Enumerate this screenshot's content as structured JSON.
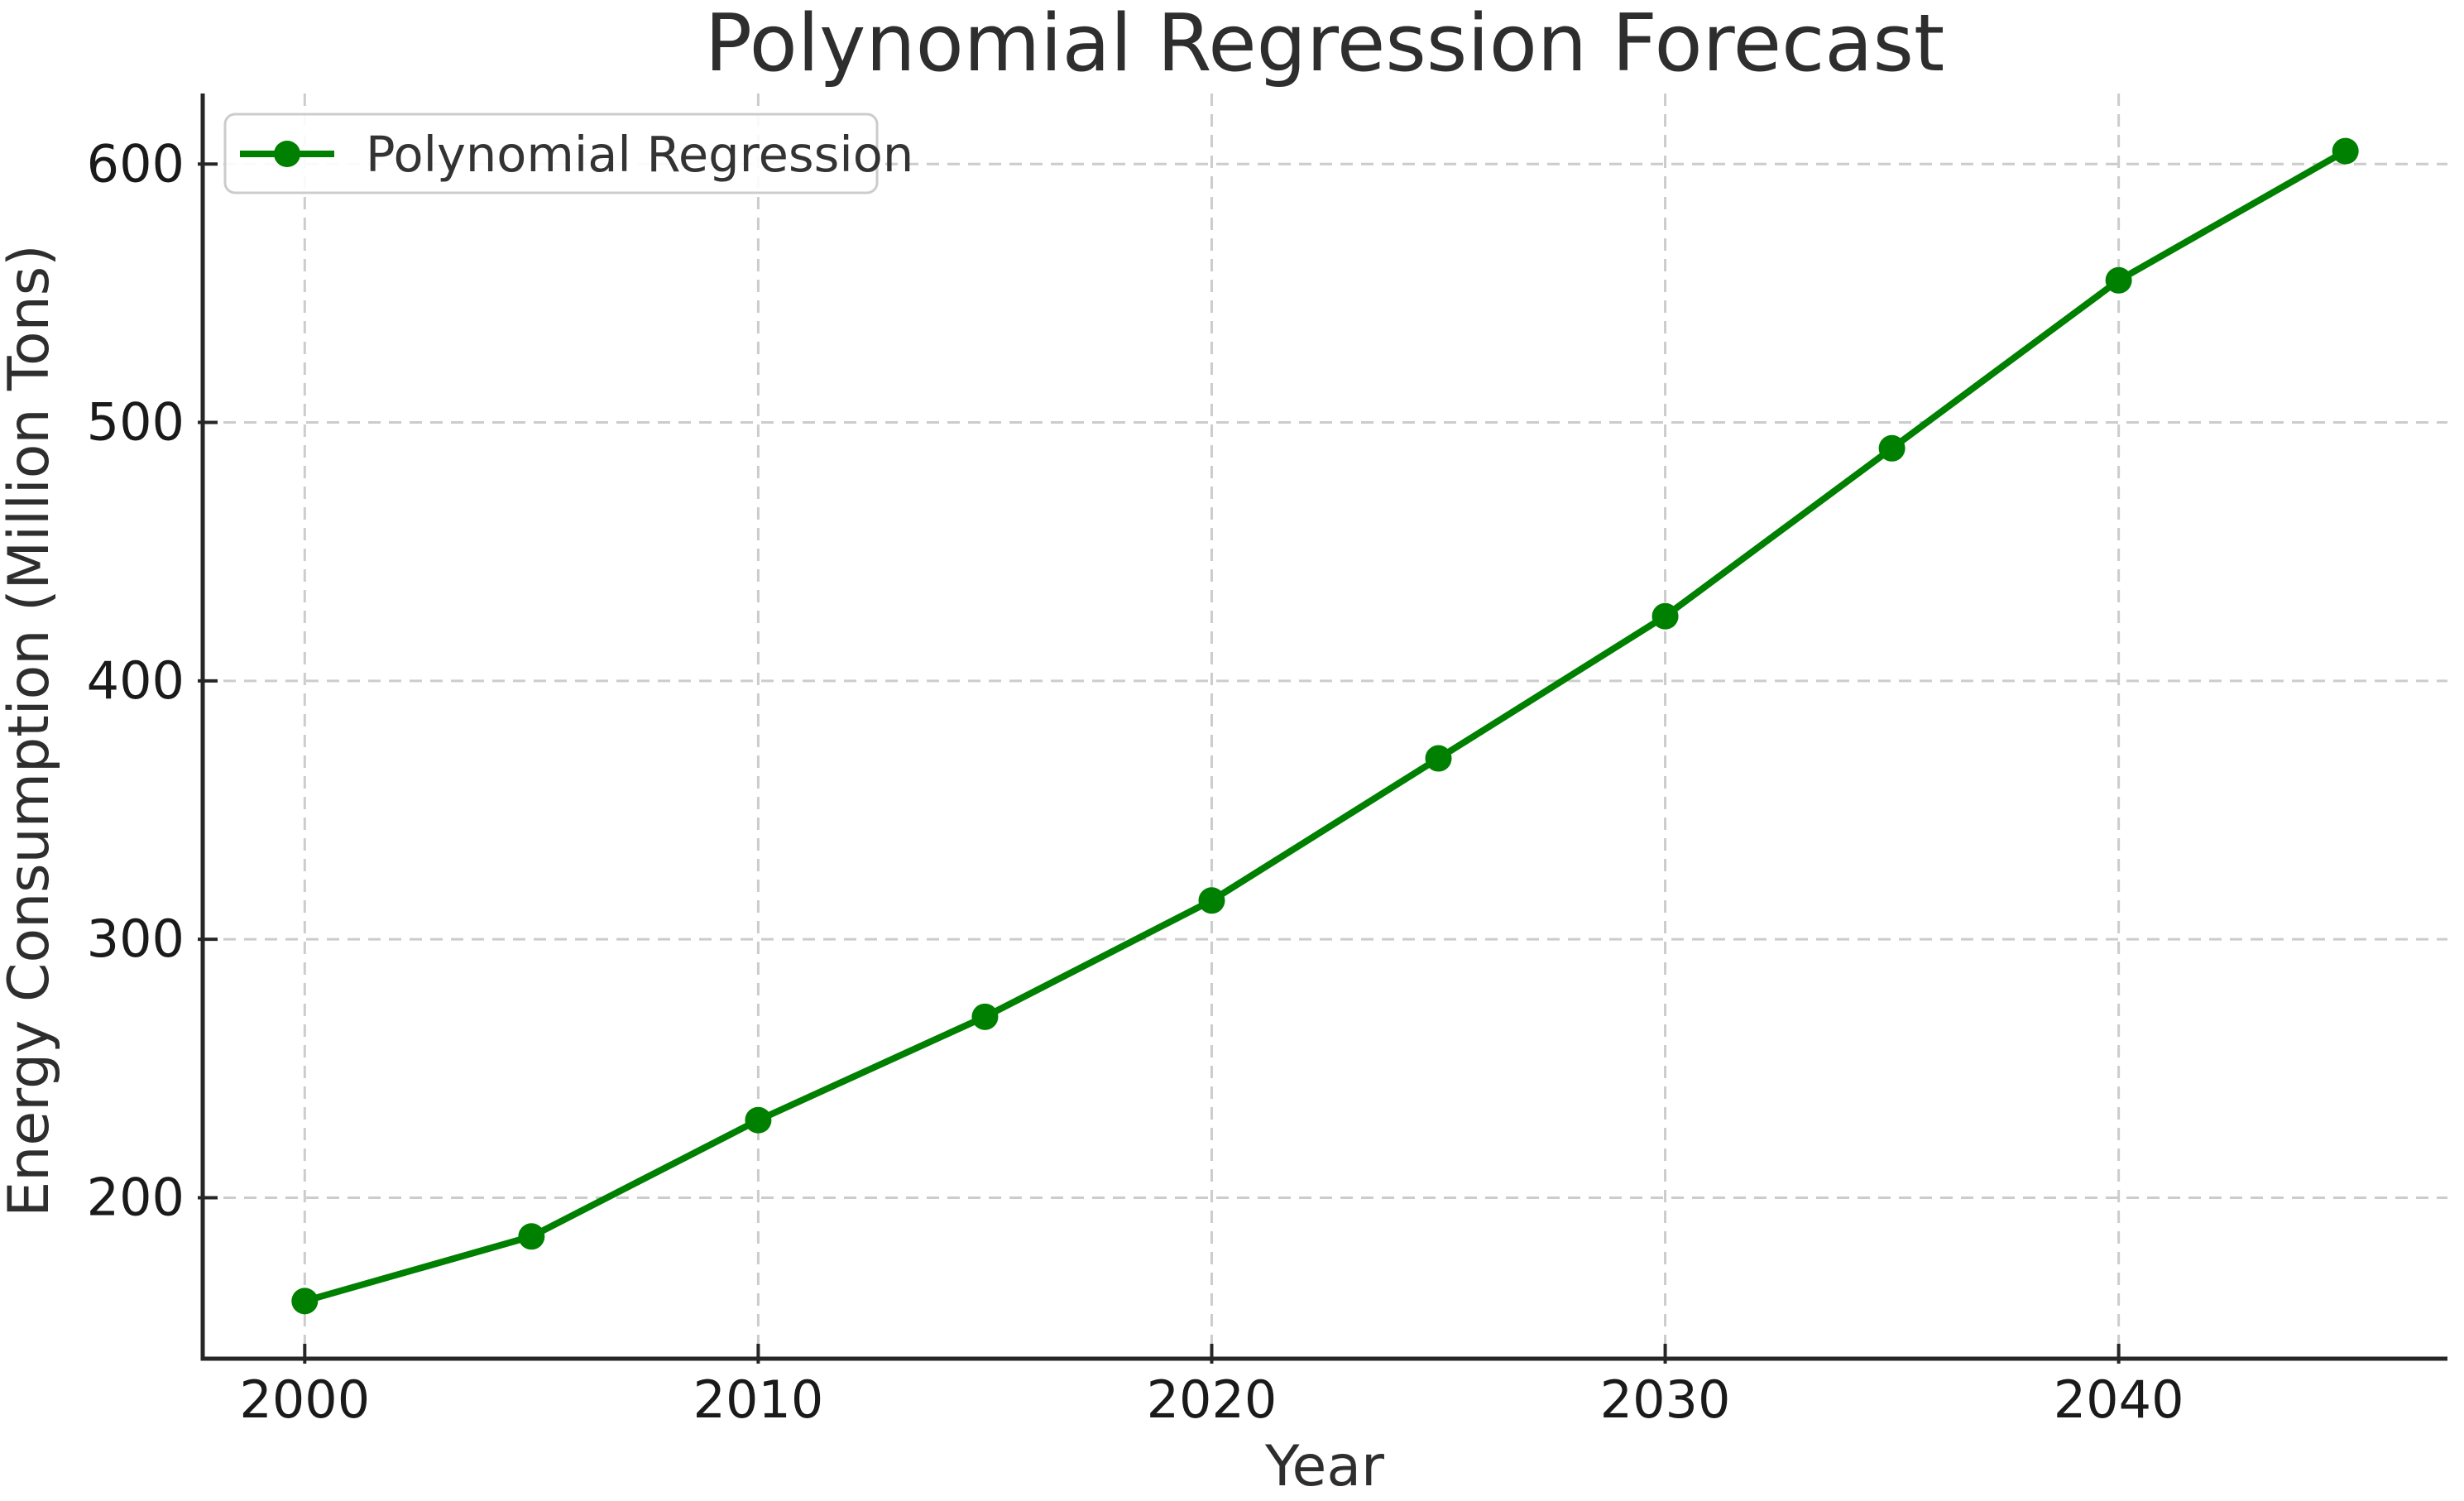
{
  "chart_data": {
    "type": "line",
    "title": "Polynomial Regression Forecast",
    "xlabel": "Year",
    "ylabel": "Energy Consumption (Million Tons)",
    "series": [
      {
        "name": "Polynomial Regression",
        "x": [
          2000,
          2005,
          2010,
          2015,
          2020,
          2025,
          2030,
          2035,
          2040,
          2045
        ],
        "values": [
          160,
          185,
          230,
          270,
          315,
          370,
          425,
          490,
          555,
          605
        ],
        "color": "#008000",
        "marker": "circle",
        "line_style": "solid"
      }
    ],
    "x_ticks": [
      2000,
      2010,
      2020,
      2030,
      2040
    ],
    "y_ticks": [
      200,
      300,
      400,
      500,
      600
    ],
    "xlim": [
      1997.75,
      2047.25
    ],
    "ylim": [
      137.7,
      627.3
    ],
    "grid": true,
    "grid_style": "dashed",
    "legend": {
      "position": "upper left",
      "labels": [
        "Polynomial Regression"
      ]
    },
    "colors": {
      "grid": "#cccccc",
      "spine": "#262626",
      "tick": "#262626",
      "tick_label": "#1a1a1a",
      "title": "#2e2e2e",
      "axis_label": "#2e2e2e",
      "legend_text": "#333333",
      "legend_border": "#cccccc",
      "legend_background": "#ffffff",
      "series_green": "#008000"
    }
  }
}
